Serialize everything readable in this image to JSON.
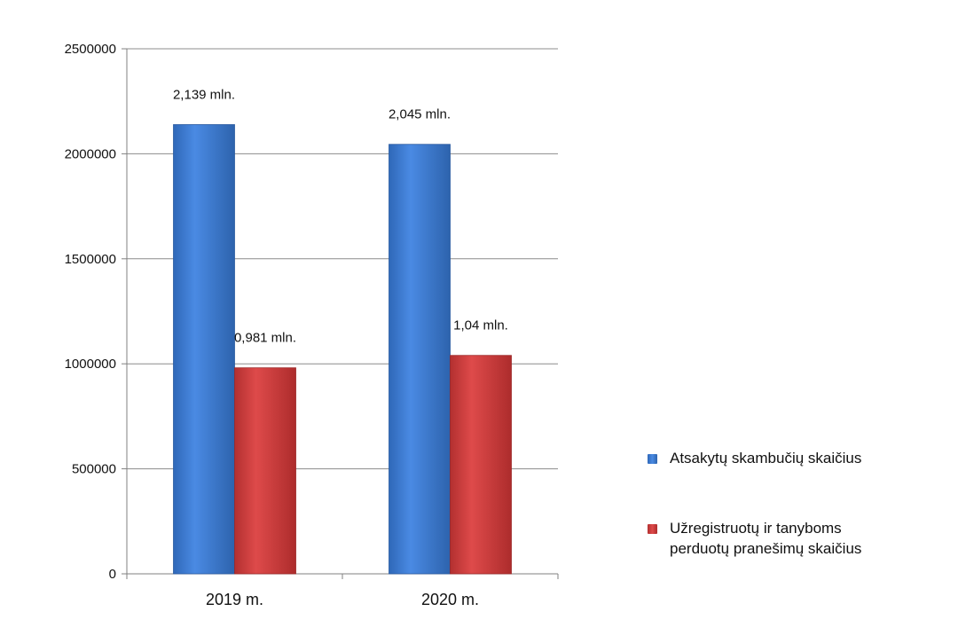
{
  "chart_data": {
    "type": "bar",
    "categories": [
      "2019 m.",
      "2020 m."
    ],
    "series": [
      {
        "name": "Atsakytų skambučių skaičius",
        "color": "#3d7ed8",
        "values": [
          2139000,
          2045000
        ],
        "data_labels": [
          "2,139 mln.",
          "2,045 mln."
        ]
      },
      {
        "name": "Užregistruotų ir tanyboms perduotų pranešimų skaičius",
        "color": "#cf3b3b",
        "values": [
          981000,
          1040000
        ],
        "data_labels": [
          "0,981 mln.",
          "1,04 mln."
        ]
      }
    ],
    "yticks": [
      "0",
      "500000",
      "1000000",
      "1500000",
      "2000000",
      "2500000"
    ],
    "ylim": [
      0,
      2500000
    ],
    "grid": true,
    "legend_position": "right"
  },
  "legend": {
    "items": [
      {
        "label_lines": [
          "Atsakytų skambučių skaičius"
        ]
      },
      {
        "label_lines": [
          "Užregistruotų ir tanyboms",
          "perduotų pranešimų skaičius"
        ]
      }
    ]
  }
}
